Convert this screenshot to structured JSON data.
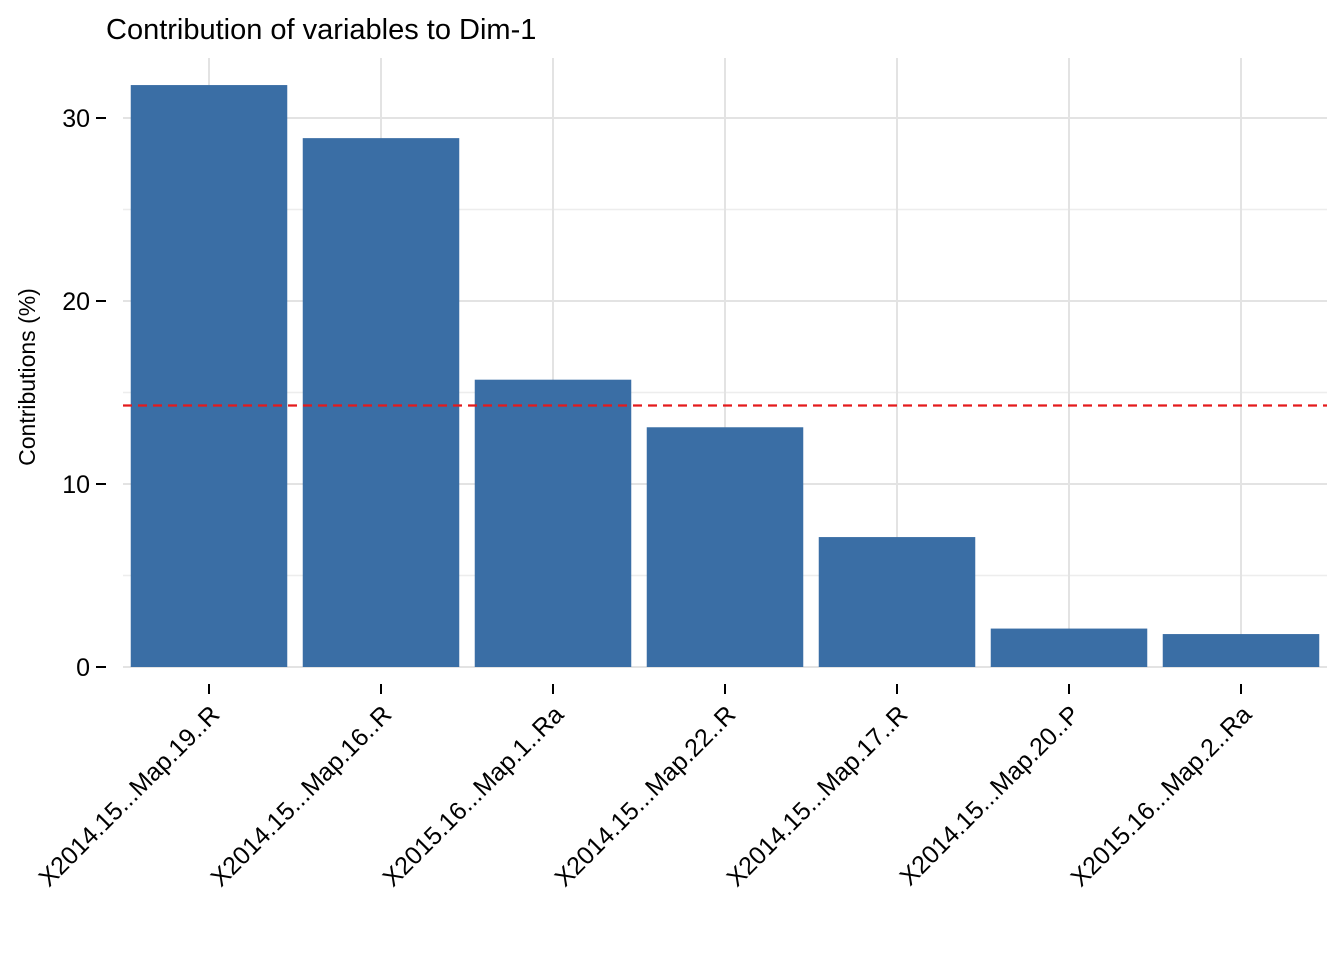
{
  "chart_data": {
    "type": "bar",
    "title": "Contribution of variables to Dim-1",
    "xlabel": "",
    "ylabel": "Contributions (%)",
    "categories": [
      "X2014.15...Map.19..R",
      "X2014.15...Map.16..R",
      "X2015.16...Map.1..Ra",
      "X2014.15...Map.22..R",
      "X2014.15...Map.17..R",
      "X2014.15...Map.20..P",
      "X2015.16...Map.2..Ra"
    ],
    "values": [
      31.8,
      28.9,
      15.7,
      13.1,
      7.1,
      2.1,
      1.8
    ],
    "reference_line": 14.29,
    "ylim": [
      0,
      33.2
    ],
    "yticks": [
      0,
      10,
      20,
      30
    ],
    "ytick_labels": [
      "0",
      "10",
      "20",
      "30"
    ],
    "grid": true,
    "bar_color": "#3A6EA5",
    "reference_line_color": "#E41A1C"
  }
}
